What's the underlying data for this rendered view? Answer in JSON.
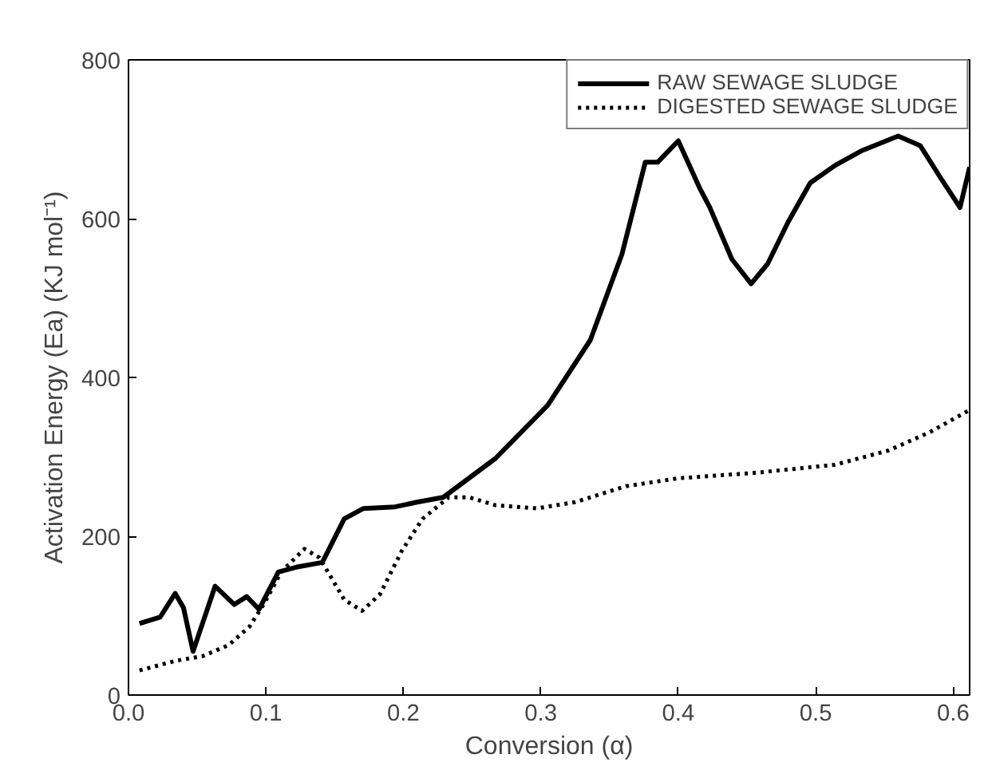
{
  "chart_data": {
    "type": "line",
    "xlabel": "Conversion (α)",
    "ylabel": "Activation Energy (Ea) (KJ mol⁻¹)",
    "xlim": [
      0,
      0.612
    ],
    "ylim": [
      0,
      800
    ],
    "xticks": [
      {
        "value": 0,
        "label": "0.0"
      },
      0.1,
      0.2,
      0.3,
      0.4,
      0.5,
      0.6
    ],
    "yticks": [
      0,
      200,
      400,
      600,
      800
    ],
    "grid": false,
    "legend": "top right",
    "series": [
      {
        "name": "RAW SEWAGE SLUDGE",
        "color": "#000000",
        "line_style": "solid",
        "x": [
          0.008,
          0.023,
          0.034,
          0.04,
          0.047,
          0.063,
          0.077,
          0.086,
          0.095,
          0.109,
          0.122,
          0.141,
          0.157,
          0.171,
          0.194,
          0.21,
          0.229,
          0.267,
          0.305,
          0.336,
          0.359,
          0.376,
          0.385,
          0.4,
          0.416,
          0.423,
          0.439,
          0.453,
          0.465,
          0.48,
          0.496,
          0.514,
          0.534,
          0.56,
          0.576,
          0.591,
          0.605,
          0.612
        ],
        "values": [
          90,
          98,
          128,
          110,
          55,
          137,
          114,
          124,
          108,
          155,
          161,
          167,
          222,
          235,
          237,
          243,
          249,
          298,
          365,
          447,
          555,
          671,
          671,
          698,
          637,
          614,
          549,
          518,
          543,
          596,
          645,
          667,
          686,
          704,
          692,
          651,
          614,
          665
        ]
      },
      {
        "name": "DIGESTED SEWAGE SLUDGE",
        "color": "#000000",
        "line_style": "dotted",
        "x": [
          0.008,
          0.034,
          0.054,
          0.073,
          0.088,
          0.099,
          0.111,
          0.128,
          0.139,
          0.157,
          0.17,
          0.183,
          0.199,
          0.214,
          0.233,
          0.248,
          0.267,
          0.297,
          0.325,
          0.362,
          0.4,
          0.457,
          0.514,
          0.553,
          0.583,
          0.612
        ],
        "values": [
          31,
          43,
          49,
          63,
          86,
          116,
          155,
          184,
          173,
          120,
          106,
          127,
          182,
          222,
          249,
          249,
          239,
          235,
          243,
          263,
          273,
          280,
          290,
          308,
          331,
          359
        ]
      }
    ]
  }
}
